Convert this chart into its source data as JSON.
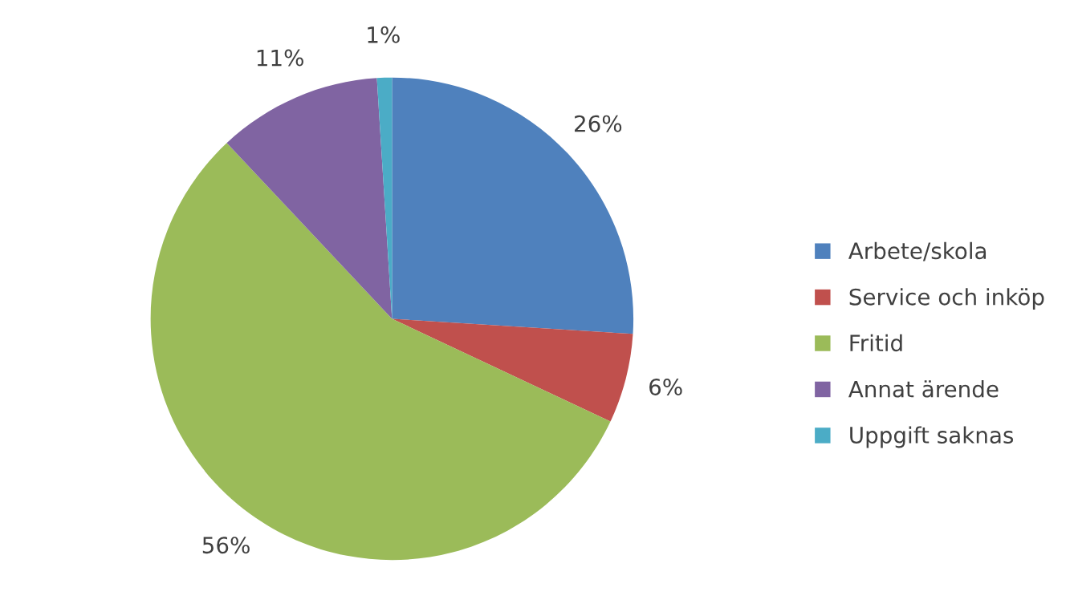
{
  "chart_data": {
    "type": "pie",
    "categories": [
      "Arbete/skola",
      "Service och inköp",
      "Fritid",
      "Annat ärende",
      "Uppgift saknas"
    ],
    "values": [
      26,
      6,
      56,
      11,
      1
    ],
    "colors": [
      "#4f81bd",
      "#c0504d",
      "#9bbb59",
      "#8064a2",
      "#4bacc6"
    ],
    "value_labels": [
      "26%",
      "6%",
      "56%",
      "11%",
      "1%"
    ],
    "legend": "right"
  }
}
